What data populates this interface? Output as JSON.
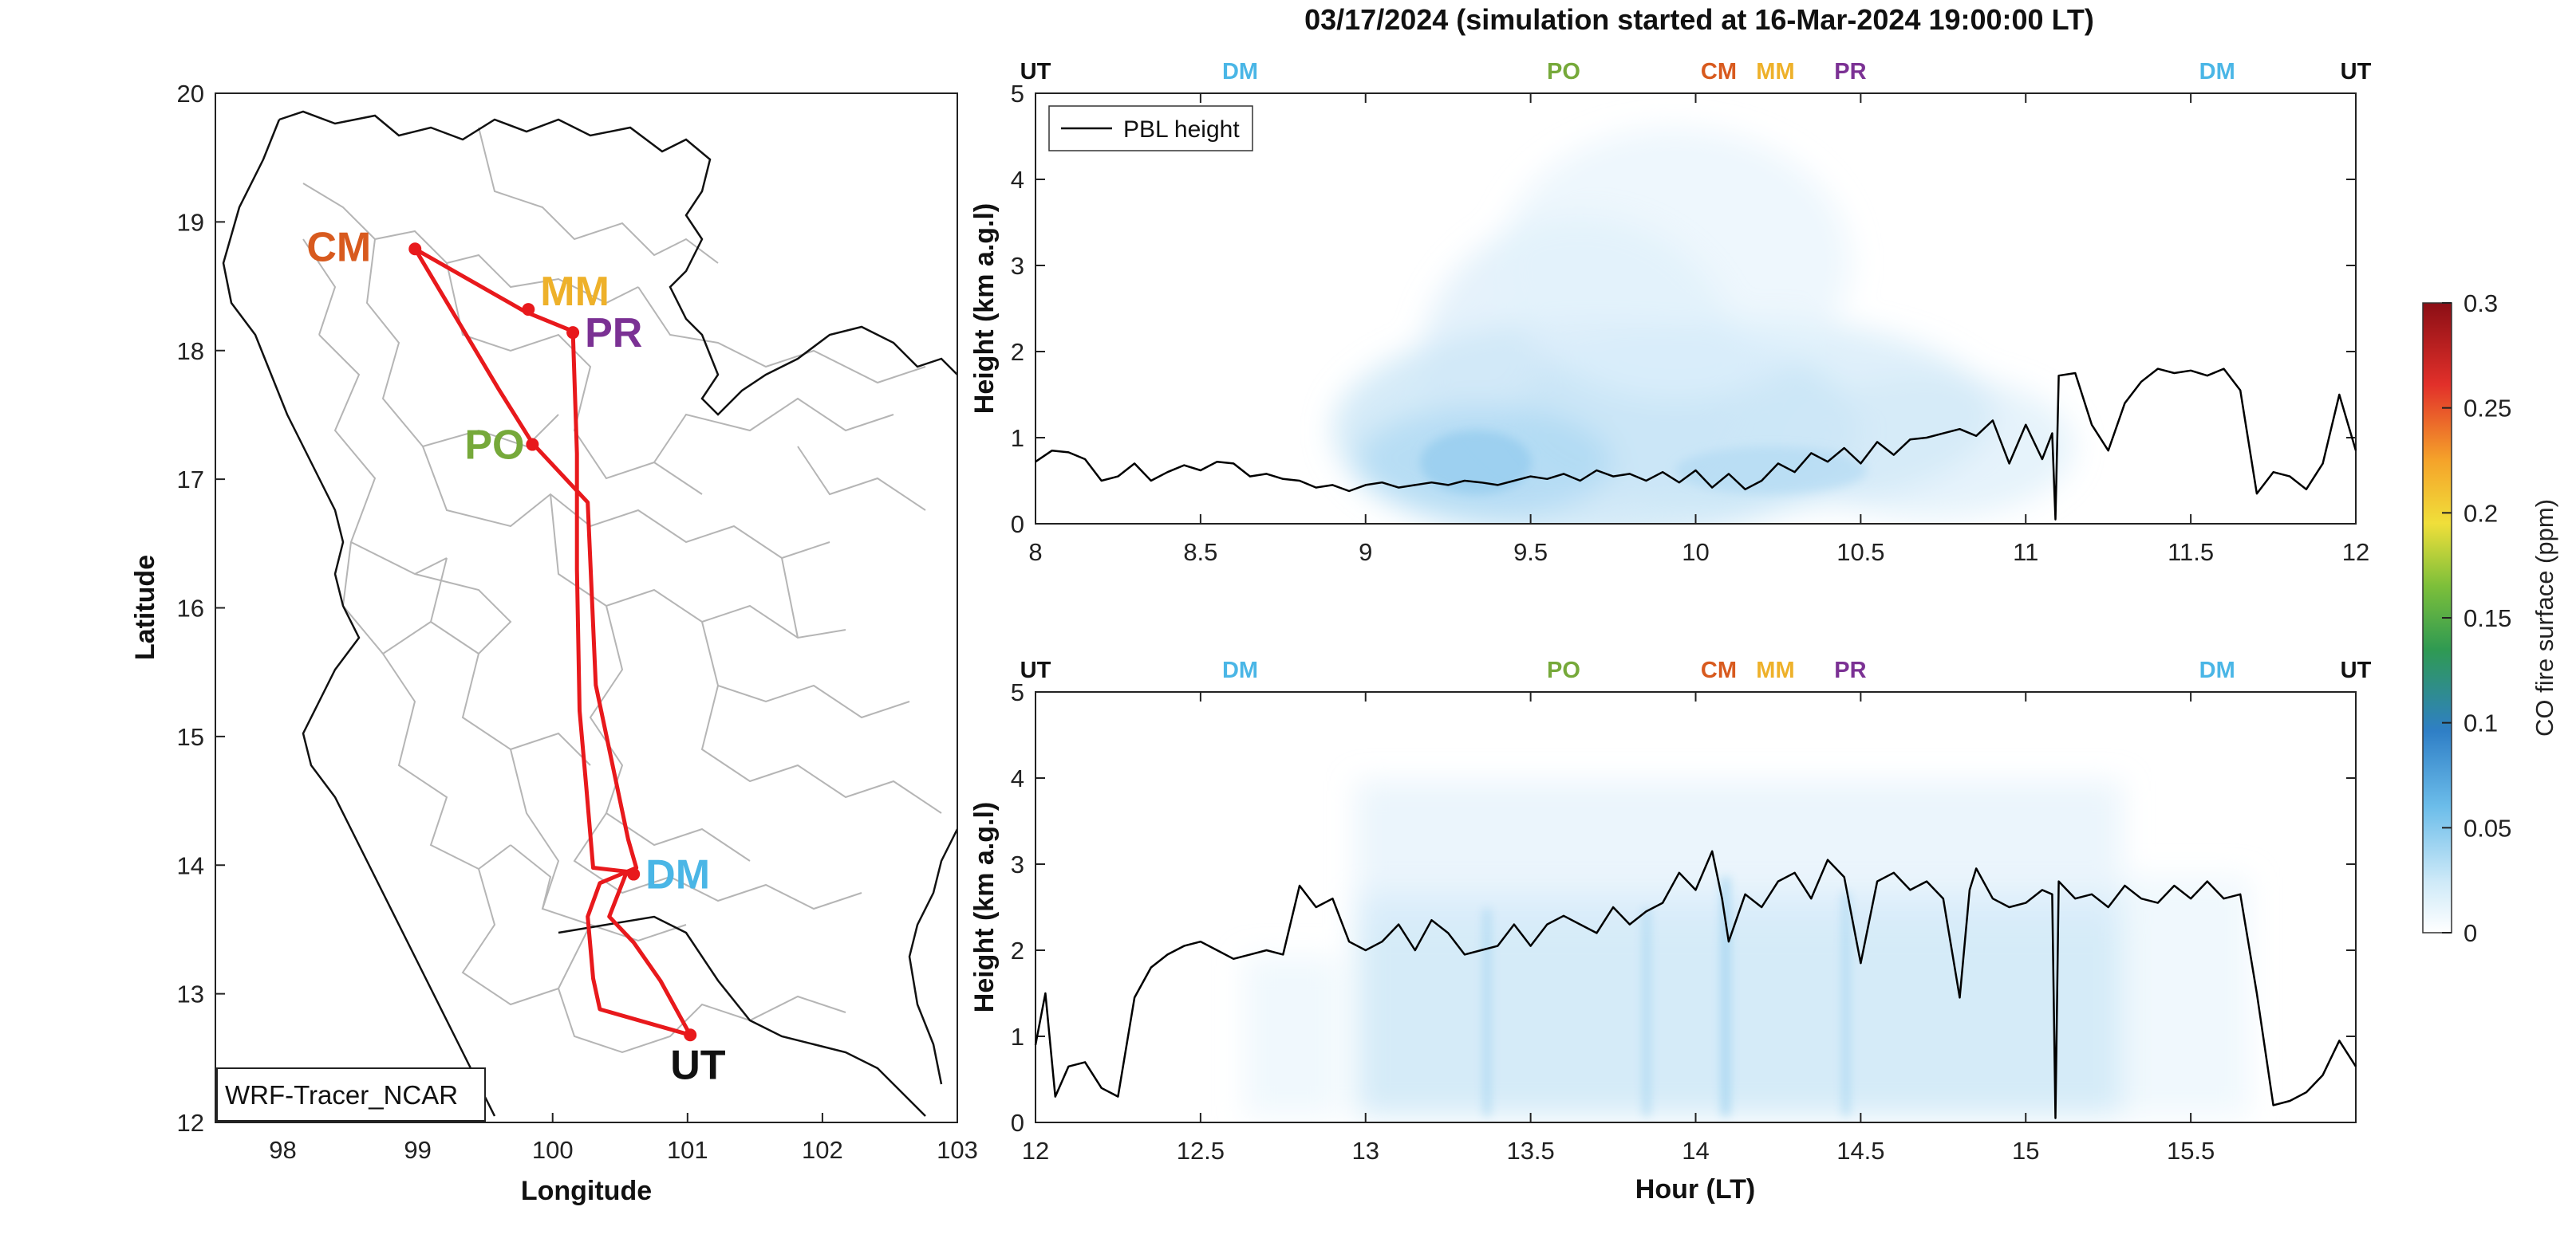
{
  "title": "03/17/2024 (simulation started at 16-Mar-2024 19:00:00 LT)",
  "colors": {
    "route": "#e8191c",
    "UT": "#111111",
    "DM": "#4ab6e6",
    "PO": "#76a93a",
    "CM": "#d85a1e",
    "MM": "#eeb12a",
    "PR": "#7b3194",
    "pbl": "#000000",
    "border": "#b5b5b5",
    "country": "#111111"
  },
  "map": {
    "xlabel": "Longitude",
    "ylabel": "Latitude",
    "xticks": [
      "98",
      "99",
      "100",
      "101",
      "102",
      "103"
    ],
    "yticks": [
      "12",
      "13",
      "14",
      "15",
      "16",
      "17",
      "18",
      "19",
      "20"
    ],
    "xlim": [
      97.5,
      103
    ],
    "ylim": [
      12,
      20
    ],
    "model_label": "WRF-Tracer_NCAR",
    "stations": [
      {
        "code": "CM",
        "lon": 98.98,
        "lat": 18.79
      },
      {
        "code": "MM",
        "lon": 99.82,
        "lat": 18.32
      },
      {
        "code": "PR",
        "lon": 100.15,
        "lat": 18.14
      },
      {
        "code": "PO",
        "lon": 99.85,
        "lat": 17.27
      },
      {
        "code": "DM",
        "lon": 100.6,
        "lat": 13.93
      },
      {
        "code": "UT",
        "lon": 101.02,
        "lat": 12.68
      }
    ],
    "route": [
      [
        101.02,
        12.68
      ],
      [
        100.35,
        12.88
      ],
      [
        100.3,
        13.12
      ],
      [
        100.26,
        13.6
      ],
      [
        100.35,
        13.86
      ],
      [
        100.62,
        13.98
      ],
      [
        100.56,
        14.2
      ],
      [
        100.32,
        15.4
      ],
      [
        100.26,
        16.82
      ],
      [
        99.85,
        17.28
      ],
      [
        99.6,
        17.7
      ],
      [
        98.98,
        18.79
      ],
      [
        99.8,
        18.3
      ],
      [
        100.15,
        18.15
      ],
      [
        100.18,
        17.2
      ],
      [
        100.18,
        16.3
      ],
      [
        100.2,
        15.2
      ],
      [
        100.25,
        14.6
      ],
      [
        100.3,
        13.98
      ],
      [
        100.55,
        13.95
      ],
      [
        100.42,
        13.6
      ],
      [
        100.6,
        13.4
      ],
      [
        100.8,
        13.1
      ],
      [
        101.02,
        12.68
      ]
    ]
  },
  "chart_data": [
    {
      "type": "area",
      "panel": "top",
      "xlabel": "",
      "ylabel": "Height (km a.g.l)",
      "xlim": [
        8,
        12
      ],
      "ylim": [
        0,
        5
      ],
      "xticks": [
        "8",
        "8.5",
        "9",
        "9.5",
        "10",
        "10.5",
        "11",
        "11.5",
        "12"
      ],
      "yticks": [
        "0",
        "1",
        "2",
        "3",
        "4",
        "5"
      ],
      "legend": {
        "label": "PBL height",
        "position": "top-left"
      },
      "top_labels": [
        {
          "code": "UT",
          "x": 8.0
        },
        {
          "code": "DM",
          "x": 8.62
        },
        {
          "code": "PO",
          "x": 9.6
        },
        {
          "code": "CM",
          "x": 10.07
        },
        {
          "code": "MM",
          "x": 10.3
        },
        {
          "code": "PR",
          "x": 10.42
        },
        {
          "code": "DM",
          "x": 11.58
        },
        {
          "code": "UT",
          "x": 12.0
        }
      ],
      "series": [
        {
          "name": "PBL height",
          "x": [
            8.0,
            8.05,
            8.1,
            8.15,
            8.2,
            8.25,
            8.3,
            8.35,
            8.4,
            8.45,
            8.5,
            8.55,
            8.6,
            8.65,
            8.7,
            8.75,
            8.8,
            8.85,
            8.9,
            8.95,
            9.0,
            9.05,
            9.1,
            9.15,
            9.2,
            9.25,
            9.3,
            9.35,
            9.4,
            9.45,
            9.5,
            9.55,
            9.6,
            9.65,
            9.7,
            9.75,
            9.8,
            9.85,
            9.9,
            9.95,
            10.0,
            10.05,
            10.1,
            10.15,
            10.2,
            10.25,
            10.3,
            10.35,
            10.4,
            10.45,
            10.5,
            10.55,
            10.6,
            10.65,
            10.7,
            10.75,
            10.8,
            10.85,
            10.9,
            10.95,
            11.0,
            11.05,
            11.08,
            11.09,
            11.1,
            11.15,
            11.2,
            11.25,
            11.3,
            11.35,
            11.4,
            11.45,
            11.5,
            11.55,
            11.6,
            11.65,
            11.7,
            11.75,
            11.8,
            11.85,
            11.9,
            11.95,
            12.0
          ],
          "y": [
            0.72,
            0.85,
            0.83,
            0.75,
            0.5,
            0.55,
            0.7,
            0.5,
            0.6,
            0.68,
            0.62,
            0.72,
            0.7,
            0.55,
            0.58,
            0.52,
            0.5,
            0.42,
            0.45,
            0.38,
            0.45,
            0.48,
            0.42,
            0.45,
            0.48,
            0.45,
            0.5,
            0.48,
            0.45,
            0.5,
            0.55,
            0.52,
            0.58,
            0.5,
            0.62,
            0.55,
            0.58,
            0.5,
            0.6,
            0.48,
            0.62,
            0.42,
            0.58,
            0.4,
            0.5,
            0.7,
            0.6,
            0.82,
            0.72,
            0.88,
            0.7,
            0.95,
            0.8,
            0.98,
            1.0,
            1.05,
            1.1,
            1.02,
            1.2,
            0.7,
            1.15,
            0.75,
            1.05,
            0.05,
            1.72,
            1.75,
            1.15,
            0.85,
            1.4,
            1.65,
            1.8,
            1.75,
            1.78,
            1.72,
            1.8,
            1.55,
            0.35,
            0.6,
            0.55,
            0.4,
            0.7,
            1.5,
            0.85
          ]
        }
      ],
      "colorbar": {
        "label": "CO fire surface (ppm)",
        "range": [
          0,
          0.3
        ],
        "ticks": [
          "0",
          "0.05",
          "0.1",
          "0.15",
          "0.2",
          "0.25",
          "0.3"
        ]
      }
    },
    {
      "type": "area",
      "panel": "bottom",
      "xlabel": "Hour (LT)",
      "ylabel": "Height (km a.g.l)",
      "xlim": [
        12,
        16
      ],
      "ylim": [
        0,
        5
      ],
      "xticks": [
        "12",
        "12.5",
        "13",
        "13.5",
        "14",
        "14.5",
        "15",
        "15.5"
      ],
      "yticks": [
        "0",
        "1",
        "2",
        "3",
        "4",
        "5"
      ],
      "top_labels": [
        {
          "code": "UT",
          "x": 12.0
        },
        {
          "code": "DM",
          "x": 12.62
        },
        {
          "code": "PO",
          "x": 13.6
        },
        {
          "code": "CM",
          "x": 14.07
        },
        {
          "code": "MM",
          "x": 14.3
        },
        {
          "code": "PR",
          "x": 14.42
        },
        {
          "code": "DM",
          "x": 15.58
        },
        {
          "code": "UT",
          "x": 16.0
        }
      ],
      "series": [
        {
          "name": "PBL height",
          "x": [
            12.0,
            12.03,
            12.06,
            12.1,
            12.15,
            12.2,
            12.25,
            12.3,
            12.35,
            12.4,
            12.45,
            12.5,
            12.55,
            12.6,
            12.65,
            12.7,
            12.75,
            12.8,
            12.85,
            12.9,
            12.95,
            13.0,
            13.05,
            13.1,
            13.15,
            13.2,
            13.25,
            13.3,
            13.35,
            13.4,
            13.45,
            13.5,
            13.55,
            13.6,
            13.65,
            13.7,
            13.75,
            13.8,
            13.85,
            13.9,
            13.95,
            14.0,
            14.05,
            14.08,
            14.1,
            14.15,
            14.2,
            14.25,
            14.3,
            14.35,
            14.4,
            14.45,
            14.5,
            14.55,
            14.6,
            14.65,
            14.7,
            14.75,
            14.8,
            14.83,
            14.85,
            14.9,
            14.95,
            15.0,
            15.05,
            15.08,
            15.09,
            15.1,
            15.15,
            15.2,
            15.25,
            15.3,
            15.35,
            15.4,
            15.45,
            15.5,
            15.55,
            15.6,
            15.65,
            15.7,
            15.75,
            15.8,
            15.85,
            15.9,
            15.95,
            16.0
          ],
          "y": [
            0.9,
            1.5,
            0.3,
            0.65,
            0.7,
            0.4,
            0.3,
            1.45,
            1.8,
            1.95,
            2.05,
            2.1,
            2.0,
            1.9,
            1.95,
            2.0,
            1.95,
            2.75,
            2.5,
            2.6,
            2.1,
            2.0,
            2.1,
            2.3,
            2.0,
            2.35,
            2.2,
            1.95,
            2.0,
            2.05,
            2.3,
            2.05,
            2.3,
            2.4,
            2.3,
            2.2,
            2.5,
            2.3,
            2.45,
            2.55,
            2.9,
            2.7,
            3.15,
            2.6,
            2.1,
            2.65,
            2.5,
            2.8,
            2.9,
            2.6,
            3.05,
            2.85,
            1.85,
            2.8,
            2.9,
            2.7,
            2.8,
            2.6,
            1.45,
            2.7,
            2.95,
            2.6,
            2.5,
            2.55,
            2.7,
            2.65,
            0.05,
            2.8,
            2.6,
            2.65,
            2.5,
            2.75,
            2.6,
            2.55,
            2.75,
            2.6,
            2.8,
            2.6,
            2.65,
            1.5,
            0.2,
            0.25,
            0.35,
            0.55,
            0.95,
            0.65
          ]
        }
      ]
    }
  ]
}
